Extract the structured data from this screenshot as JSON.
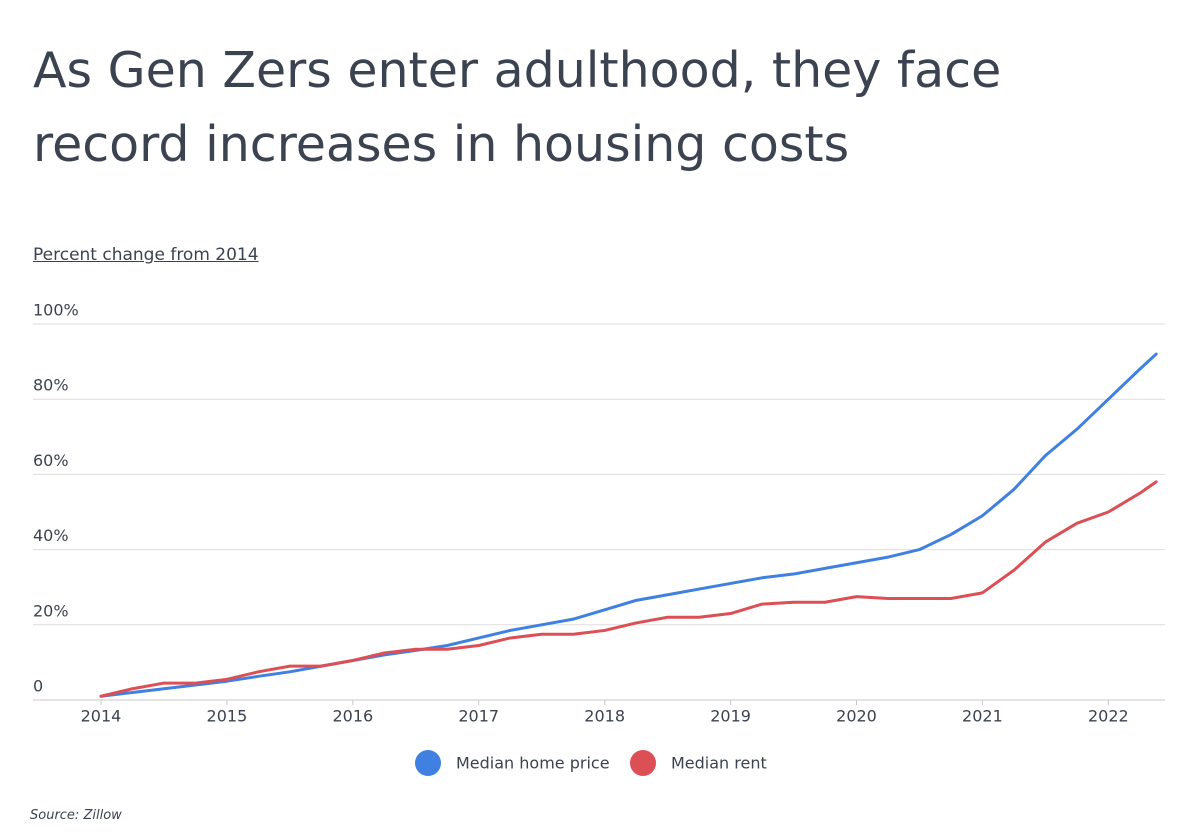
{
  "chart_data": {
    "type": "line",
    "title": "As Gen Zers enter adulthood, they face record increases in housing costs",
    "subtitle": "Percent change from 2014",
    "source": "Source:  Zillow",
    "x": [
      2014,
      2014.25,
      2014.5,
      2014.75,
      2015,
      2015.25,
      2015.5,
      2015.75,
      2016,
      2016.25,
      2016.5,
      2016.75,
      2017,
      2017.25,
      2017.5,
      2017.75,
      2018,
      2018.25,
      2018.5,
      2018.75,
      2019,
      2019.25,
      2019.5,
      2019.75,
      2020,
      2020.25,
      2020.5,
      2020.75,
      2021,
      2021.25,
      2021.5,
      2021.75,
      2022,
      2022.25,
      2022.38
    ],
    "series": [
      {
        "name": "Median home price",
        "color": "#3f80e0",
        "values": [
          1,
          2,
          3,
          4,
          5,
          6.3,
          7.5,
          9,
          10.5,
          12,
          13.2,
          14.5,
          16.5,
          18.5,
          20,
          21.5,
          24,
          26.5,
          28,
          29.5,
          31,
          32.5,
          33.5,
          35,
          36.5,
          38,
          40,
          44,
          49,
          56,
          65,
          72,
          80,
          88,
          92
        ]
      },
      {
        "name": "Median rent",
        "color": "#dc4f55",
        "values": [
          1,
          3,
          4.5,
          4.5,
          5.5,
          7.5,
          9,
          9,
          10.5,
          12.5,
          13.5,
          13.5,
          14.5,
          16.5,
          17.5,
          17.5,
          18.5,
          20.5,
          22,
          22,
          23,
          25.5,
          26,
          26,
          27.5,
          27,
          27,
          27,
          28.5,
          34.5,
          42,
          47,
          50,
          55,
          58
        ]
      }
    ],
    "xlim": [
      2013.46,
      2022.45
    ],
    "xticks": [
      2014,
      2015,
      2016,
      2017,
      2018,
      2019,
      2020,
      2021,
      2022
    ],
    "ylim": [
      0,
      100
    ],
    "yticks": [
      0,
      {
        "value": 20,
        "label": "20%"
      },
      {
        "value": 40,
        "label": "40%"
      },
      {
        "value": 60,
        "label": "60%"
      },
      {
        "value": 80,
        "label": "80%"
      },
      {
        "value": 100,
        "label": "100%"
      }
    ],
    "grid": true,
    "legend": "bottom"
  }
}
